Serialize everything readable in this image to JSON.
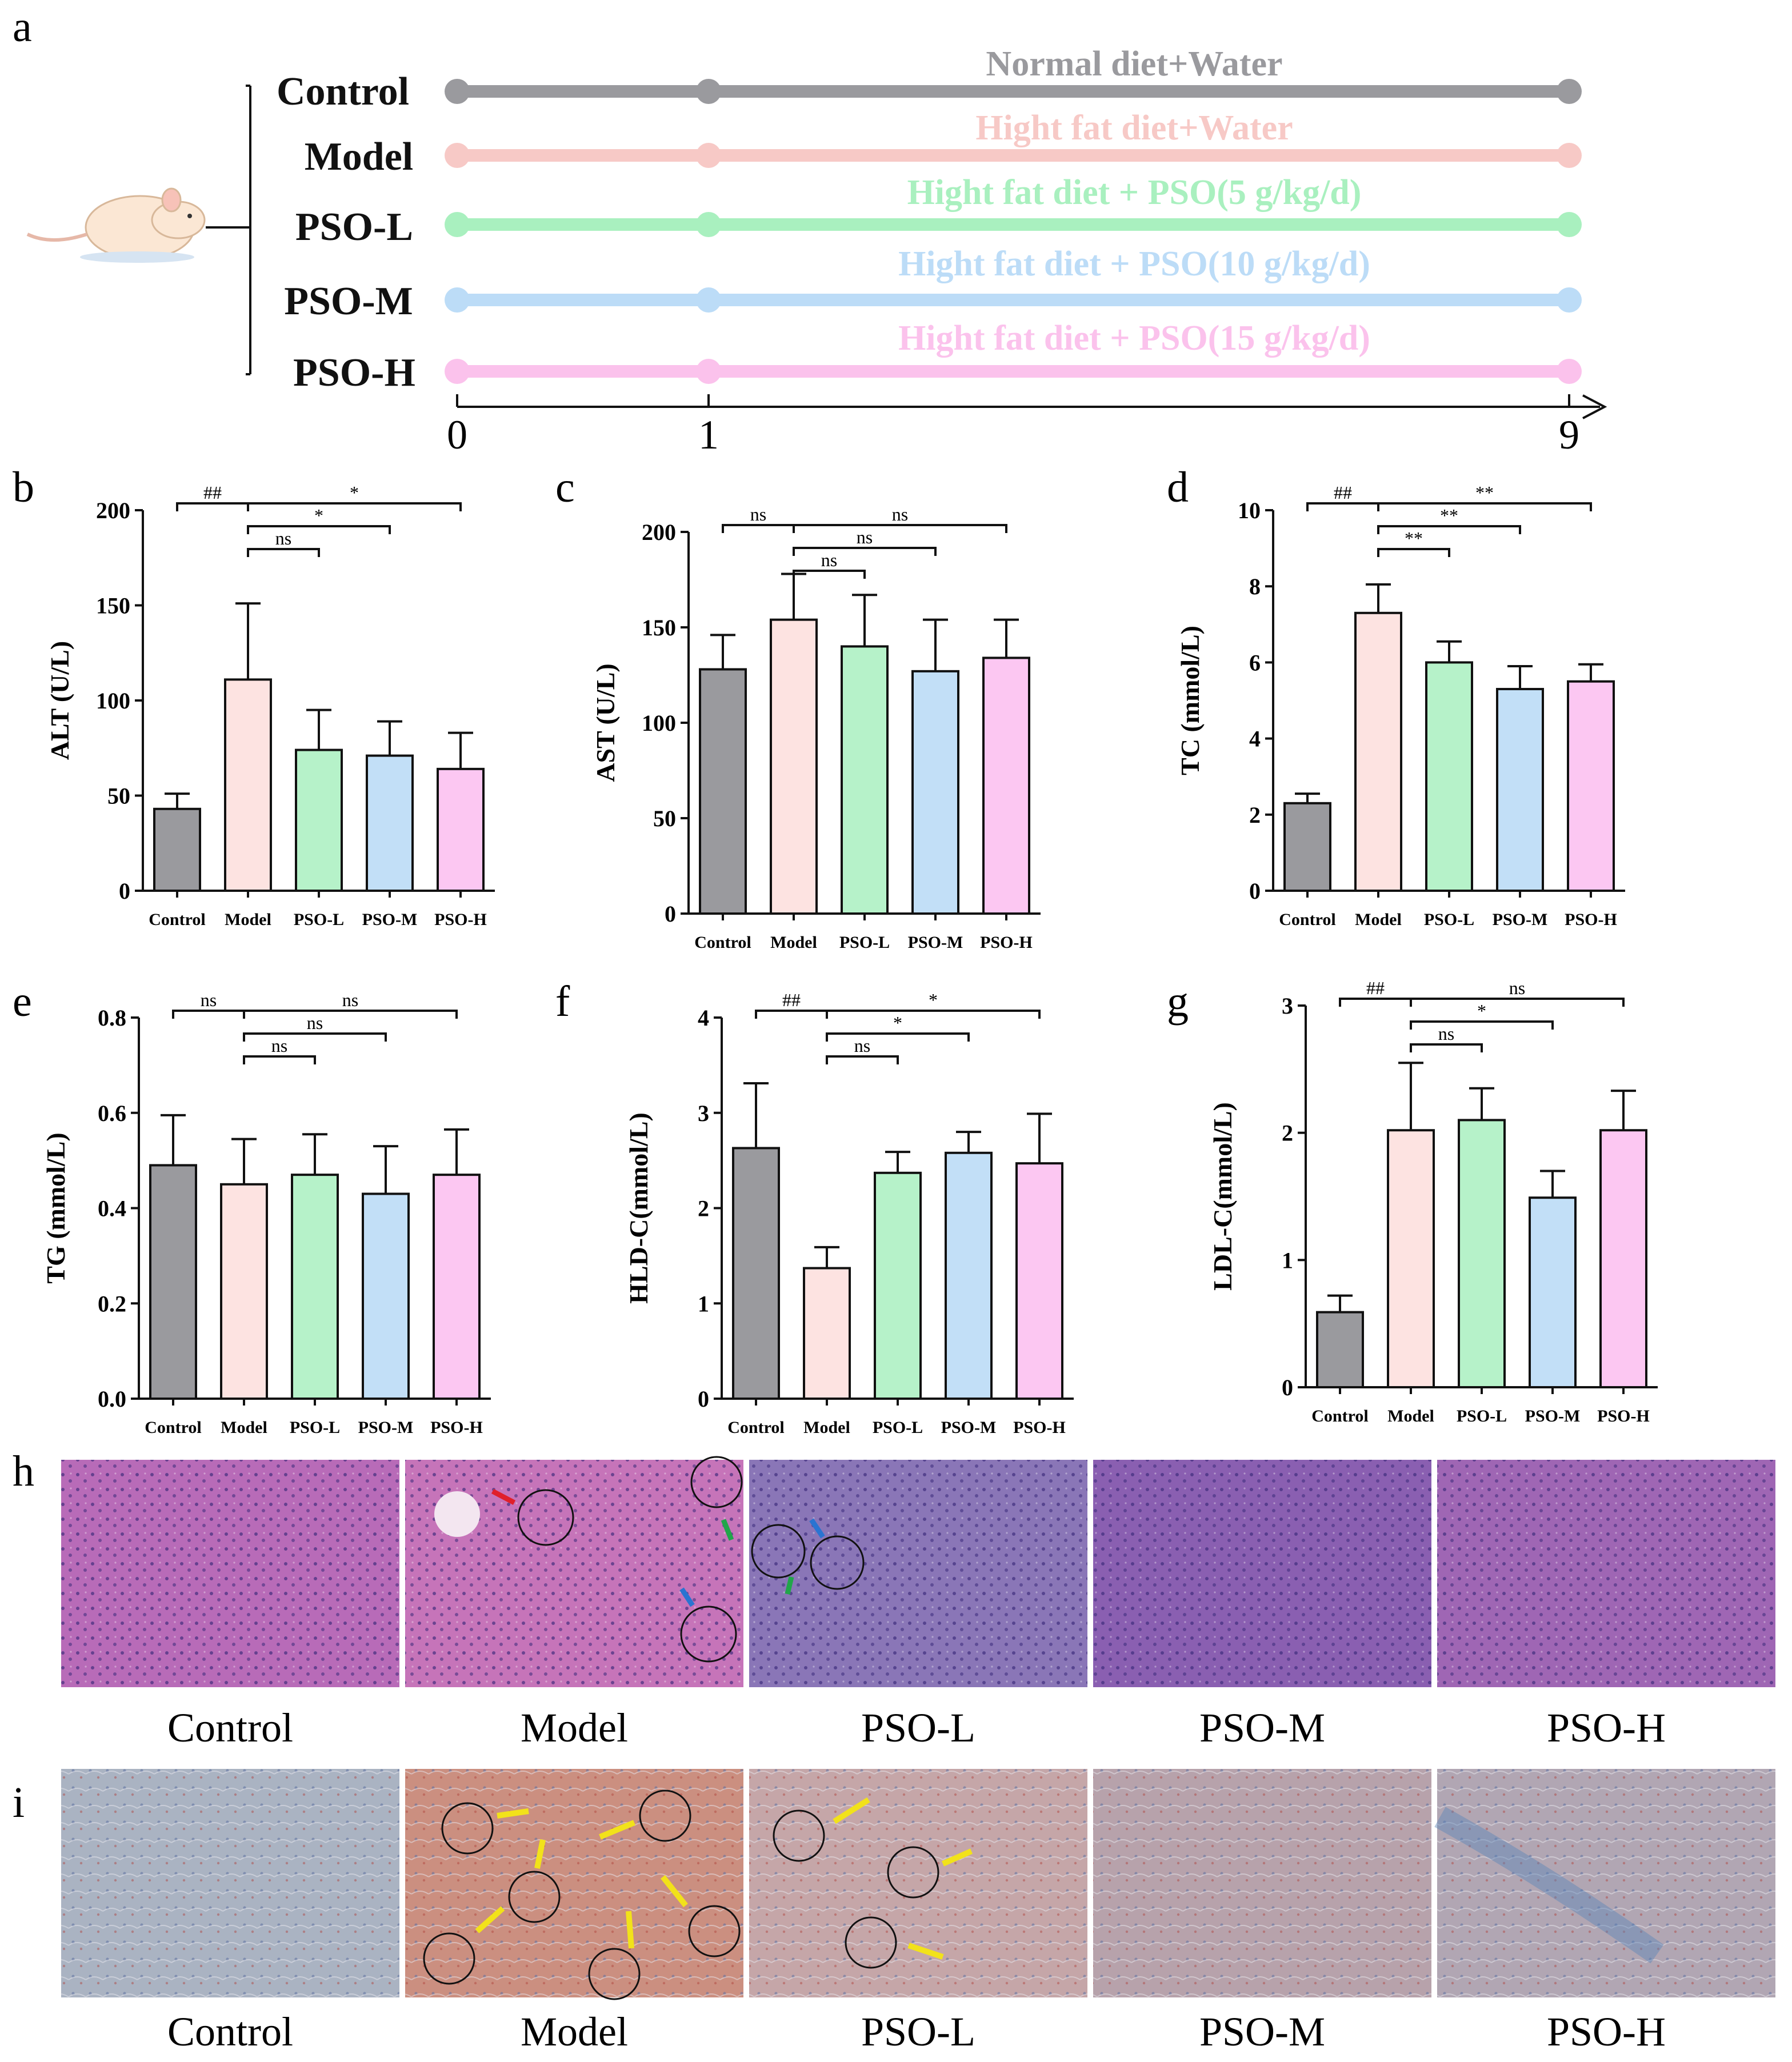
{
  "panel_letters": [
    "a",
    "b",
    "c",
    "d",
    "e",
    "f",
    "g",
    "h",
    "i"
  ],
  "timeline": {
    "groups": [
      {
        "name": "Control",
        "treatment": "Normal diet+Water",
        "color": "#9a9a9e"
      },
      {
        "name": "Model",
        "treatment": "Hight fat diet+Water",
        "color": "#f7c9c6"
      },
      {
        "name": "PSO-L",
        "treatment": "Hight fat diet + PSO(5 g/kg/d)",
        "color": "#a9f0bf"
      },
      {
        "name": "PSO-M",
        "treatment": "Hight fat diet + PSO(10 g/kg/d)",
        "color": "#bcdcf7"
      },
      {
        "name": "PSO-H",
        "treatment": "Hight fat diet + PSO(15 g/kg/d)",
        "color": "#fbc2ec"
      }
    ],
    "ticks": [
      "0",
      "1",
      "9"
    ]
  },
  "chart_data": [
    {
      "panel": "b",
      "type": "bar",
      "ylabel": "ALT (U/L)",
      "ylim": [
        0,
        200
      ],
      "yticks": [
        0,
        50,
        100,
        150,
        200
      ],
      "categories": [
        "Control",
        "Model",
        "PSO-L",
        "PSO-M",
        "PSO-H"
      ],
      "values": [
        43,
        111,
        74,
        71,
        64
      ],
      "errors": [
        8,
        40,
        21,
        18,
        19
      ],
      "colors": [
        "#9a9a9e",
        "#fde3e1",
        "#b6f2c9",
        "#c2dff7",
        "#fcc7f2"
      ],
      "significance": [
        {
          "from": 0,
          "to": 1,
          "label": "##",
          "level": 3
        },
        {
          "from": 1,
          "to": 4,
          "label": "*",
          "level": 3
        },
        {
          "from": 1,
          "to": 3,
          "label": "*",
          "level": 2
        },
        {
          "from": 1,
          "to": 2,
          "label": "ns",
          "level": 1
        }
      ]
    },
    {
      "panel": "c",
      "type": "bar",
      "ylabel": "AST (U/L)",
      "ylim": [
        0,
        200
      ],
      "yticks": [
        0,
        50,
        100,
        150,
        200
      ],
      "categories": [
        "Control",
        "Model",
        "PSO-L",
        "PSO-M",
        "PSO-H"
      ],
      "values": [
        128,
        154,
        140,
        127,
        134
      ],
      "errors": [
        18,
        24,
        27,
        27,
        20
      ],
      "colors": [
        "#9a9a9e",
        "#fde3e1",
        "#b6f2c9",
        "#c2dff7",
        "#fcc7f2"
      ],
      "significance": [
        {
          "from": 0,
          "to": 1,
          "label": "ns",
          "level": 3
        },
        {
          "from": 1,
          "to": 4,
          "label": "ns",
          "level": 3
        },
        {
          "from": 1,
          "to": 3,
          "label": "ns",
          "level": 2
        },
        {
          "from": 1,
          "to": 2,
          "label": "ns",
          "level": 1
        }
      ]
    },
    {
      "panel": "d",
      "type": "bar",
      "ylabel": "TC (mmol/L)",
      "ylim": [
        0,
        10
      ],
      "yticks": [
        0,
        2,
        4,
        6,
        8,
        10
      ],
      "categories": [
        "Control",
        "Model",
        "PSO-L",
        "PSO-M",
        "PSO-H"
      ],
      "values": [
        2.3,
        7.3,
        6.0,
        5.3,
        5.5
      ],
      "errors": [
        0.25,
        0.75,
        0.55,
        0.6,
        0.45
      ],
      "colors": [
        "#9a9a9e",
        "#fde3e1",
        "#b6f2c9",
        "#c2dff7",
        "#fcc7f2"
      ],
      "significance": [
        {
          "from": 0,
          "to": 1,
          "label": "##",
          "level": 3
        },
        {
          "from": 1,
          "to": 4,
          "label": "**",
          "level": 3
        },
        {
          "from": 1,
          "to": 3,
          "label": "**",
          "level": 2
        },
        {
          "from": 1,
          "to": 2,
          "label": "**",
          "level": 1
        }
      ]
    },
    {
      "panel": "e",
      "type": "bar",
      "ylabel": "TG (mmol/L)",
      "ylim": [
        0,
        0.8
      ],
      "yticks": [
        "0.0",
        "0.2",
        "0.4",
        "0.6",
        "0.8"
      ],
      "categories": [
        "Control",
        "Model",
        "PSO-L",
        "PSO-M",
        "PSO-H"
      ],
      "values": [
        0.49,
        0.45,
        0.47,
        0.43,
        0.47
      ],
      "errors": [
        0.105,
        0.095,
        0.085,
        0.1,
        0.095
      ],
      "colors": [
        "#9a9a9e",
        "#fde3e1",
        "#b6f2c9",
        "#c2dff7",
        "#fcc7f2"
      ],
      "significance": [
        {
          "from": 0,
          "to": 1,
          "label": "ns",
          "level": 3
        },
        {
          "from": 1,
          "to": 4,
          "label": "ns",
          "level": 3
        },
        {
          "from": 1,
          "to": 3,
          "label": "ns",
          "level": 2
        },
        {
          "from": 1,
          "to": 2,
          "label": "ns",
          "level": 1
        }
      ]
    },
    {
      "panel": "f",
      "type": "bar",
      "ylabel": "HLD-C(mmol/L)",
      "ylim": [
        0,
        4
      ],
      "yticks": [
        0,
        1,
        2,
        3,
        4
      ],
      "categories": [
        "Control",
        "Model",
        "PSO-L",
        "PSO-M",
        "PSO-H"
      ],
      "values": [
        2.63,
        1.37,
        2.37,
        2.58,
        2.47
      ],
      "errors": [
        0.68,
        0.22,
        0.22,
        0.22,
        0.52
      ],
      "colors": [
        "#9a9a9e",
        "#fde3e1",
        "#b6f2c9",
        "#c2dff7",
        "#fcc7f2"
      ],
      "significance": [
        {
          "from": 0,
          "to": 1,
          "label": "##",
          "level": 3
        },
        {
          "from": 1,
          "to": 4,
          "label": "*",
          "level": 3
        },
        {
          "from": 1,
          "to": 3,
          "label": "*",
          "level": 2
        },
        {
          "from": 1,
          "to": 2,
          "label": "ns",
          "level": 1
        }
      ]
    },
    {
      "panel": "g",
      "type": "bar",
      "ylabel": "LDL-C(mmol/L)",
      "ylim": [
        0,
        3
      ],
      "yticks": [
        0,
        1,
        2,
        3
      ],
      "categories": [
        "Control",
        "Model",
        "PSO-L",
        "PSO-M",
        "PSO-H"
      ],
      "values": [
        0.59,
        2.02,
        2.1,
        1.49,
        2.02
      ],
      "errors": [
        0.13,
        0.53,
        0.25,
        0.21,
        0.31
      ],
      "colors": [
        "#9a9a9e",
        "#fde3e1",
        "#b6f2c9",
        "#c2dff7",
        "#fcc7f2"
      ],
      "significance": [
        {
          "from": 0,
          "to": 1,
          "label": "##",
          "level": 3
        },
        {
          "from": 1,
          "to": 4,
          "label": "ns",
          "level": 3
        },
        {
          "from": 1,
          "to": 3,
          "label": "*",
          "level": 2
        },
        {
          "from": 1,
          "to": 2,
          "label": "ns",
          "level": 1
        }
      ]
    }
  ],
  "histology": {
    "h": {
      "captions": [
        "Control",
        "Model",
        "PSO-L",
        "PSO-M",
        "PSO-H"
      ],
      "colors": [
        "#b86bb8",
        "#c674b9",
        "#8a76b7",
        "#8a5fb1",
        "#9f66b4"
      ]
    },
    "i": {
      "captions": [
        "Control",
        "Model",
        "PSO-L",
        "PSO-M",
        "PSO-H"
      ],
      "colors": [
        "#aab3c2",
        "#cb8f80",
        "#c5a6a8",
        "#b7a2ab",
        "#b1a6b3"
      ]
    }
  }
}
